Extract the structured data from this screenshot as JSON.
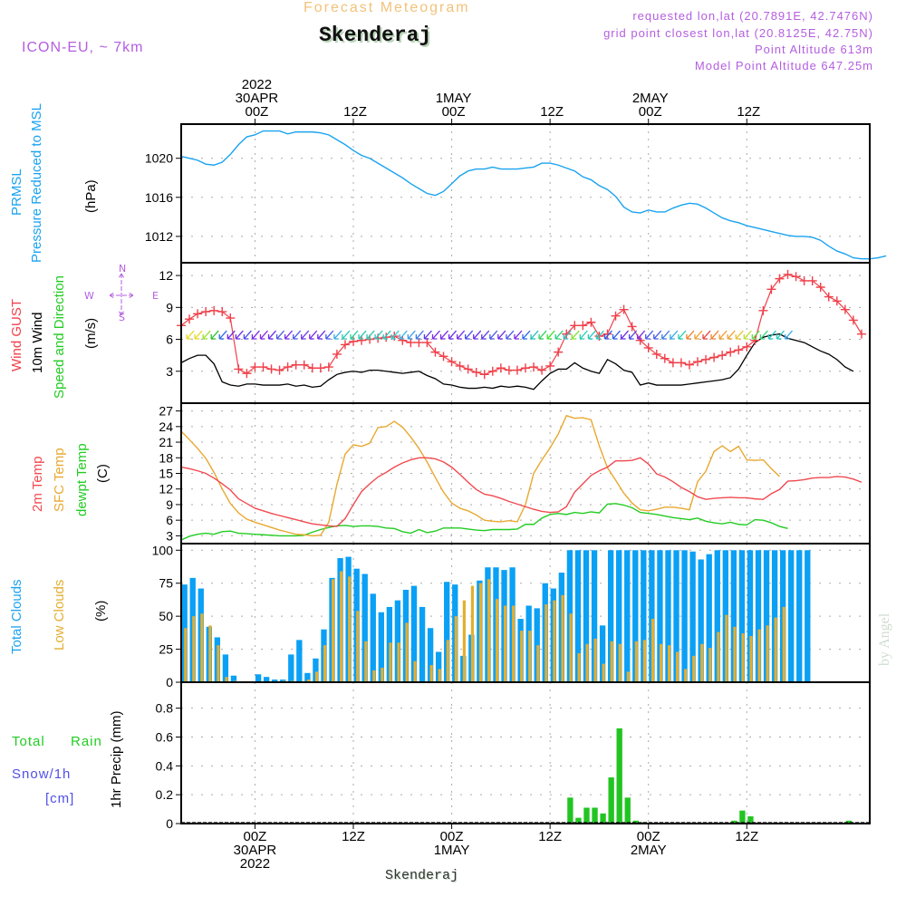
{
  "header": {
    "title": "Forecast Meteogram",
    "station": "Skenderaj",
    "model": "ICON-EU, ~ 7km",
    "requested": "requested lon,lat (20.7891E, 42.7476N)",
    "grid_point": "grid point closest lon,lat (20.8125E, 42.75N)",
    "point_altitude": "Point Altitude 613m",
    "model_altitude": "Model Point Altitude 647.25m"
  },
  "labels": {
    "pressure": {
      "line1": "PRMSL",
      "line2": "Pressure Reduced to MSL",
      "unit": "(hPa)"
    },
    "wind": {
      "gust": "Wind GUST",
      "wind10": "10m Wind",
      "dir": "Speed and Direction",
      "unit": "(m/s)"
    },
    "compass": {
      "n": "N",
      "s": "S",
      "w": "W",
      "e": "E"
    },
    "temp": {
      "t2m": "2m Temp",
      "sfc": "SFC Temp",
      "dew": "dewpt Temp",
      "unit": "(C)"
    },
    "cloud": {
      "total": "Total Clouds",
      "low": "Low Clouds",
      "unit": "(%)"
    },
    "precip": {
      "total": "Total",
      "rain": "Rain",
      "snow": "Snow/1h",
      "snow_unit": "[cm]",
      "unit": "1hr Precip (mm)"
    },
    "watermark": "by Angel",
    "footer": "Skenderaj"
  },
  "colors": {
    "pressure": "#1aa3f0",
    "gust": "#f0404a",
    "wind": "#000000",
    "t2m": "#f04a50",
    "sfc": "#e8a830",
    "dew": "#22cc22",
    "total_cloud": "#0aa0f5",
    "low_cloud": "#e3ae30",
    "rain": "#22c422",
    "snow": "#5050e8",
    "label_purple": "#b45ee0"
  },
  "chart_data": [
    {
      "type": "line",
      "title": "PRMSL Pressure Reduced to MSL",
      "ylabel": "(hPa)",
      "ylim": [
        1009.3,
        1023.5
      ],
      "yticks": [
        1012,
        1016,
        1020
      ],
      "x_hours_from": "2022-04-29T15Z",
      "x_step_hours": 1,
      "series": [
        {
          "name": "PRMSL",
          "values": [
            1020.2,
            1020.0,
            1019.8,
            1019.4,
            1019.3,
            1019.6,
            1020.4,
            1021.4,
            1022.2,
            1022.4,
            1022.8,
            1022.8,
            1022.8,
            1022.5,
            1022.7,
            1022.7,
            1022.7,
            1022.6,
            1022.4,
            1021.9,
            1021.4,
            1020.8,
            1020.3,
            1020.0,
            1019.5,
            1019.0,
            1018.5,
            1018.0,
            1017.4,
            1016.9,
            1016.4,
            1016.2,
            1016.6,
            1017.4,
            1018.2,
            1018.7,
            1018.9,
            1018.9,
            1019.1,
            1018.9,
            1018.9,
            1018.9,
            1019.0,
            1019.1,
            1019.5,
            1019.5,
            1019.3,
            1019.0,
            1018.7,
            1018.1,
            1017.8,
            1017.2,
            1016.8,
            1016.1,
            1015.0,
            1014.5,
            1014.4,
            1014.7,
            1014.5,
            1014.5,
            1014.9,
            1015.2,
            1015.4,
            1015.3,
            1014.9,
            1014.4,
            1013.9,
            1013.6,
            1013.4,
            1013.1,
            1012.9,
            1012.7,
            1012.5,
            1012.3,
            1012.1,
            1012.0,
            1012.0,
            1011.9,
            1011.6,
            1011.0,
            1010.5,
            1010.2,
            1009.8,
            1009.7,
            1009.7,
            1009.8,
            1010.0
          ]
        }
      ]
    },
    {
      "type": "line",
      "title": "Wind GUST / 10m Wind Speed and Direction",
      "ylabel": "(m/s)",
      "ylim": [
        0,
        13.2
      ],
      "yticks": [
        3,
        6,
        9,
        12
      ],
      "series": [
        {
          "name": "Wind GUST",
          "marker": "+",
          "values": [
            7.3,
            7.9,
            8.4,
            8.6,
            8.7,
            8.6,
            8.0,
            3.2,
            2.8,
            3.4,
            3.4,
            3.2,
            3.1,
            3.4,
            3.6,
            3.6,
            3.3,
            3.3,
            3.4,
            4.6,
            5.5,
            5.8,
            5.9,
            6.0,
            6.1,
            6.2,
            6.3,
            5.9,
            5.7,
            5.7,
            5.7,
            4.8,
            4.4,
            3.9,
            3.5,
            3.2,
            2.9,
            2.7,
            3.0,
            3.3,
            3.1,
            3.1,
            3.3,
            3.4,
            3.1,
            3.5,
            4.8,
            6.5,
            7.3,
            7.3,
            7.6,
            6.3,
            6.5,
            8.2,
            8.8,
            7.2,
            5.9,
            5.2,
            4.6,
            4.2,
            3.8,
            3.8,
            3.6,
            3.9,
            4.1,
            4.3,
            4.5,
            4.8,
            5.0,
            5.3,
            5.9,
            8.7,
            10.7,
            11.7,
            12.1,
            11.9,
            11.5,
            11.5,
            10.9,
            10.0,
            9.6,
            8.8,
            7.8,
            6.5
          ]
        },
        {
          "name": "10m Wind",
          "values": [
            3.8,
            4.2,
            4.5,
            4.5,
            3.7,
            2.0,
            1.7,
            1.6,
            1.8,
            1.8,
            1.7,
            1.7,
            1.7,
            1.8,
            1.6,
            1.7,
            1.5,
            1.6,
            2.2,
            2.7,
            2.9,
            3.0,
            2.9,
            3.1,
            3.1,
            3.0,
            2.9,
            2.8,
            2.9,
            3.0,
            2.6,
            2.3,
            1.8,
            1.7,
            1.5,
            1.4,
            1.4,
            1.5,
            1.4,
            1.6,
            1.5,
            1.6,
            1.5,
            1.3,
            2.1,
            2.8,
            3.2,
            3.2,
            3.8,
            3.3,
            3.0,
            2.8,
            4.1,
            3.7,
            3.1,
            2.9,
            1.7,
            1.9,
            1.7,
            1.7,
            1.7,
            1.7,
            1.8,
            1.9,
            2.0,
            2.1,
            2.2,
            2.4,
            3.2,
            4.5,
            5.7,
            6.2,
            6.4,
            6.5,
            6.1,
            5.9,
            5.7,
            5.3,
            4.9,
            4.6,
            4.1,
            3.4,
            3.0
          ]
        },
        {
          "name": "Direction arrows",
          "display_speed": 6.3,
          "colors": [
            "#e8d82a",
            "#e8d82a",
            "#9ae02a",
            "#30c030",
            "#2a6ae8",
            "#6a2ae8",
            "#6a2ae8",
            "#4a4ae8",
            "#7a2ae8",
            "#8a2ae8",
            "#6a2ae8",
            "#4a5ae8",
            "#7a2ae8",
            "#4a5ae8",
            "#6a3ae8",
            "#7a2ae8",
            "#6a2ae8",
            "#4a5ae8",
            "#3aaae8",
            "#28c8b0",
            "#28d0a0",
            "#28c8b0",
            "#28c8b0",
            "#28c8c0",
            "#28c8c0",
            "#2ad0d0",
            "#3ab8e8",
            "#3a9ae8",
            "#3a7ae8",
            "#5a3ae8",
            "#7a2ae8",
            "#7a2ae8",
            "#6a2ae8",
            "#7a2ae8",
            "#4a4ae8",
            "#6a2ae8",
            "#5a3ae8",
            "#4a5ae8",
            "#6a2ae8",
            "#4a5ae8",
            "#7a2ae8",
            "#2a6ae8",
            "#28c0c0",
            "#30d060",
            "#40e030",
            "#28d080",
            "#30c0c0",
            "#80e030",
            "#28d0b0",
            "#28c8c0",
            "#28c8c0",
            "#2a5ae8",
            "#2a5ae8",
            "#6a2ae8",
            "#4a4ae8",
            "#7a2ae8",
            "#4a5ae8",
            "#4a5ae8",
            "#3a7ae8",
            "#3aaae8",
            "#28d0b0",
            "#e88030",
            "#f0a030",
            "#e84040",
            "#f08030",
            "#f0a030",
            "#f0a030",
            "#e8c030",
            "#c0e030",
            "#60e050",
            "#40d080",
            "#28c8c0",
            "#28c8c0",
            "#3aaae8"
          ]
        }
      ]
    },
    {
      "type": "line",
      "title": "Temperatures",
      "ylabel": "(C)",
      "ylim": [
        1.5,
        28.5
      ],
      "yticks": [
        3,
        6,
        9,
        12,
        15,
        18,
        21,
        24,
        27
      ],
      "series": [
        {
          "name": "2m Temp",
          "values": [
            16.2,
            15.9,
            15.5,
            15.0,
            14.1,
            13.0,
            11.8,
            10.1,
            9.2,
            8.3,
            7.8,
            7.3,
            6.9,
            6.5,
            6.1,
            5.7,
            5.3,
            5.1,
            4.9,
            4.8,
            6.3,
            9.0,
            11.5,
            13.0,
            14.3,
            15.2,
            16.2,
            17.0,
            17.6,
            18.0,
            18.0,
            17.8,
            17.2,
            16.2,
            14.8,
            13.3,
            11.9,
            11.0,
            10.7,
            10.2,
            9.6,
            9.1,
            8.6,
            8.1,
            7.7,
            7.5,
            7.6,
            8.6,
            11.4,
            13.0,
            14.6,
            15.5,
            16.2,
            17.4,
            17.4,
            17.5,
            18.0,
            16.8,
            14.9,
            14.3,
            13.4,
            12.3,
            11.5,
            10.5,
            10.0,
            10.2,
            10.3,
            10.4,
            10.3,
            10.3,
            10.1,
            10.0,
            11.1,
            11.9,
            13.5,
            13.6,
            13.8,
            14.1,
            14.2,
            14.2,
            14.4,
            14.3,
            13.9,
            13.3
          ]
        },
        {
          "name": "SFC Temp",
          "values": [
            23.1,
            21.5,
            19.8,
            17.9,
            15.2,
            12.0,
            9.2,
            7.4,
            6.2,
            5.6,
            5.1,
            4.6,
            4.1,
            3.7,
            3.3,
            3.2,
            3.0,
            3.1,
            5.6,
            12.9,
            18.7,
            20.5,
            20.2,
            20.8,
            23.8,
            24.0,
            25.0,
            23.9,
            22.0,
            19.8,
            17.2,
            14.2,
            11.4,
            9.3,
            8.3,
            7.8,
            7.0,
            6.0,
            5.8,
            5.7,
            5.9,
            5.7,
            9.0,
            15.0,
            17.6,
            19.9,
            22.6,
            26.1,
            25.6,
            25.7,
            25.3,
            20.3,
            16.1,
            13.7,
            11.2,
            9.3,
            8.0,
            7.8,
            8.1,
            8.5,
            8.5,
            8.3,
            8.0,
            13.4,
            15.4,
            19.2,
            20.3,
            19.2,
            20.2,
            17.6,
            17.5,
            17.6,
            15.9,
            14.4
          ]
        },
        {
          "name": "dewpt Temp",
          "values": [
            2.2,
            2.9,
            3.3,
            3.5,
            3.3,
            3.8,
            3.9,
            3.5,
            3.4,
            3.3,
            3.2,
            3.1,
            3.0,
            3.0,
            3.0,
            3.1,
            3.7,
            4.2,
            4.6,
            4.9,
            5.0,
            4.8,
            4.9,
            4.9,
            4.8,
            4.5,
            4.4,
            3.8,
            3.5,
            4.2,
            3.6,
            3.9,
            4.5,
            4.5,
            4.5,
            4.3,
            4.1,
            4.0,
            4.2,
            4.2,
            4.2,
            4.3,
            5.2,
            5.2,
            6.4,
            7.1,
            7.3,
            7.1,
            7.5,
            7.3,
            7.6,
            7.4,
            9.1,
            9.2,
            8.9,
            8.4,
            7.5,
            7.3,
            7.1,
            6.8,
            6.5,
            6.3,
            6.1,
            6.4,
            5.8,
            5.5,
            5.3,
            5.6,
            5.2,
            5.1,
            6.1,
            6.0,
            5.5,
            4.8,
            4.4
          ]
        }
      ]
    },
    {
      "type": "bar",
      "title": "Total Clouds / Low Clouds",
      "ylabel": "(%)",
      "ylim": [
        0,
        105
      ],
      "yticks": [
        0,
        25,
        50,
        75,
        100
      ],
      "series": [
        {
          "name": "Total Clouds",
          "values": [
            74,
            79,
            71,
            42,
            34,
            21,
            5,
            0,
            0,
            6,
            4,
            2,
            2,
            21,
            32,
            7,
            18,
            40,
            79,
            94,
            95,
            86,
            82,
            67,
            53,
            57,
            62,
            70,
            73,
            57,
            41,
            23,
            76,
            74,
            20,
            36,
            77,
            87,
            87,
            85,
            87,
            48,
            58,
            56,
            75,
            71,
            83,
            100,
            100,
            100,
            100,
            43,
            100,
            100,
            100,
            100,
            100,
            100,
            100,
            100,
            100,
            100,
            99,
            93,
            97,
            100,
            100,
            100,
            100,
            100,
            100,
            100,
            100,
            100,
            100,
            100,
            100
          ]
        },
        {
          "name": "Low Clouds",
          "values": [
            41,
            50,
            52,
            43,
            28,
            4,
            1,
            0,
            0,
            0,
            0,
            0,
            1,
            1,
            0,
            2,
            8,
            28,
            78,
            84,
            80,
            54,
            31,
            9,
            11,
            30,
            30,
            45,
            16,
            0,
            13,
            10,
            32,
            50,
            62,
            73,
            75,
            78,
            63,
            58,
            58,
            39,
            39,
            28,
            59,
            62,
            66,
            52,
            22,
            29,
            33,
            14,
            31,
            29,
            8,
            31,
            32,
            48,
            29,
            28,
            23,
            10,
            20,
            29,
            26,
            38,
            51,
            42,
            37,
            35,
            40,
            43,
            49,
            57
          ]
        }
      ]
    },
    {
      "type": "bar",
      "title": "1hr Precip",
      "ylabel": "1hr Precip (mm)",
      "ylim": [
        0,
        0.98
      ],
      "yticks": [
        0,
        0.2,
        0.4,
        0.6,
        0.8
      ],
      "series": [
        {
          "name": "Total Rain",
          "values": [
            0,
            0,
            0,
            0,
            0,
            0,
            0,
            0,
            0,
            0,
            0,
            0,
            0,
            0,
            0,
            0,
            0,
            0,
            0,
            0,
            0,
            0,
            0,
            0,
            0,
            0,
            0,
            0,
            0,
            0,
            0,
            0,
            0,
            0,
            0,
            0,
            0,
            0,
            0,
            0,
            0,
            0,
            0,
            0,
            0,
            0,
            0,
            0.18,
            0.04,
            0.11,
            0.11,
            0.07,
            0.32,
            0.66,
            0.18,
            0.02,
            0.01,
            0,
            0,
            0,
            0,
            0,
            0,
            0,
            0,
            0,
            0,
            0.02,
            0.09,
            0.05,
            0,
            0,
            0,
            0,
            0,
            0,
            0,
            0,
            0,
            0,
            0,
            0.02,
            0,
            0,
            0,
            0,
            0
          ]
        },
        {
          "name": "Snow/1h",
          "values": []
        }
      ]
    }
  ],
  "time_axis": {
    "top": [
      {
        "hour": 9,
        "lines": [
          "2022",
          "30APR",
          "00Z"
        ]
      },
      {
        "hour": 21,
        "lines": [
          "12Z"
        ]
      },
      {
        "hour": 33,
        "lines": [
          "1MAY",
          "00Z"
        ]
      },
      {
        "hour": 45,
        "lines": [
          "12Z"
        ]
      },
      {
        "hour": 57,
        "lines": [
          "2MAY",
          "00Z"
        ]
      },
      {
        "hour": 69,
        "lines": [
          "12Z"
        ]
      }
    ],
    "bottom": [
      {
        "hour": 9,
        "lines": [
          "00Z",
          "30APR",
          "2022"
        ]
      },
      {
        "hour": 21,
        "lines": [
          "12Z"
        ]
      },
      {
        "hour": 33,
        "lines": [
          "00Z",
          "1MAY"
        ]
      },
      {
        "hour": 45,
        "lines": [
          "12Z"
        ]
      },
      {
        "hour": 57,
        "lines": [
          "00Z",
          "2MAY"
        ]
      },
      {
        "hour": 69,
        "lines": [
          "12Z"
        ]
      }
    ]
  }
}
